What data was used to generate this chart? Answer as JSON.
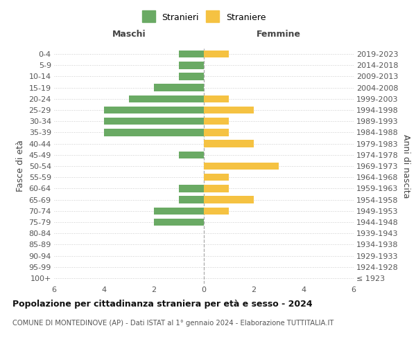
{
  "age_groups": [
    "100+",
    "95-99",
    "90-94",
    "85-89",
    "80-84",
    "75-79",
    "70-74",
    "65-69",
    "60-64",
    "55-59",
    "50-54",
    "45-49",
    "40-44",
    "35-39",
    "30-34",
    "25-29",
    "20-24",
    "15-19",
    "10-14",
    "5-9",
    "0-4"
  ],
  "birth_years": [
    "≤ 1923",
    "1924-1928",
    "1929-1933",
    "1934-1938",
    "1939-1943",
    "1944-1948",
    "1949-1953",
    "1954-1958",
    "1959-1963",
    "1964-1968",
    "1969-1973",
    "1974-1978",
    "1979-1983",
    "1984-1988",
    "1989-1993",
    "1994-1998",
    "1999-2003",
    "2004-2008",
    "2009-2013",
    "2014-2018",
    "2019-2023"
  ],
  "males": [
    0,
    0,
    0,
    0,
    0,
    2,
    2,
    1,
    1,
    0,
    0,
    1,
    0,
    4,
    4,
    4,
    3,
    2,
    1,
    1,
    1
  ],
  "females": [
    0,
    0,
    0,
    0,
    0,
    0,
    1,
    2,
    1,
    1,
    3,
    0,
    2,
    1,
    1,
    2,
    1,
    0,
    0,
    0,
    1
  ],
  "male_color": "#6aaa64",
  "female_color": "#f5c242",
  "grid_color": "#cccccc",
  "dashed_color": "#aaaaaa",
  "xlim": 6,
  "title": "Popolazione per cittadinanza straniera per età e sesso - 2024",
  "subtitle": "COMUNE DI MONTEDINOVE (AP) - Dati ISTAT al 1° gennaio 2024 - Elaborazione TUTTITALIA.IT",
  "legend_male": "Stranieri",
  "legend_female": "Straniere",
  "xlabel_left": "Maschi",
  "xlabel_right": "Femmine",
  "ylabel_left": "Fasce di età",
  "ylabel_right": "Anni di nascita",
  "bg_color": "#ffffff",
  "text_color": "#555555",
  "title_color": "#111111",
  "bar_height": 0.65
}
